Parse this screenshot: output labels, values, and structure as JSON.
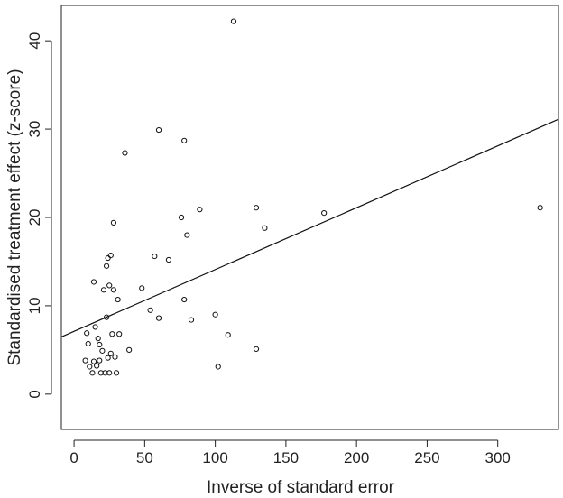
{
  "chart_data": {
    "type": "scatter",
    "title": "",
    "xlabel": "Inverse of standard error",
    "ylabel": "Standardised treatment effect (z-score)",
    "xlim": [
      -9,
      343
    ],
    "ylim": [
      -4,
      44
    ],
    "xticks": [
      0,
      50,
      100,
      150,
      200,
      250,
      300
    ],
    "yticks": [
      0,
      10,
      20,
      30,
      40
    ],
    "grid": false,
    "legend": "none",
    "series": [
      {
        "marker": "open-circle",
        "points": [
          [
            8,
            3.8
          ],
          [
            9,
            6.9
          ],
          [
            10,
            5.7
          ],
          [
            11,
            3.1
          ],
          [
            13,
            2.4
          ],
          [
            14,
            12.7
          ],
          [
            14,
            3.7
          ],
          [
            15,
            7.6
          ],
          [
            16,
            3.2
          ],
          [
            17,
            6.3
          ],
          [
            18,
            3.8
          ],
          [
            18,
            5.6
          ],
          [
            19,
            2.4
          ],
          [
            20,
            4.9
          ],
          [
            21,
            11.8
          ],
          [
            22,
            2.4
          ],
          [
            23,
            8.7
          ],
          [
            23,
            14.5
          ],
          [
            24,
            15.4
          ],
          [
            24,
            4.1
          ],
          [
            25,
            12.3
          ],
          [
            25,
            2.4
          ],
          [
            26,
            15.7
          ],
          [
            26,
            4.6
          ],
          [
            27,
            6.8
          ],
          [
            28,
            11.8
          ],
          [
            28,
            19.4
          ],
          [
            29,
            4.2
          ],
          [
            30,
            2.4
          ],
          [
            31,
            10.7
          ],
          [
            32,
            6.8
          ],
          [
            36,
            27.3
          ],
          [
            39,
            5.0
          ],
          [
            48,
            12.0
          ],
          [
            54,
            9.5
          ],
          [
            57,
            15.6
          ],
          [
            60,
            29.9
          ],
          [
            60,
            8.6
          ],
          [
            67,
            15.2
          ],
          [
            76,
            20.0
          ],
          [
            78,
            28.7
          ],
          [
            78,
            10.7
          ],
          [
            80,
            18.0
          ],
          [
            83,
            8.4
          ],
          [
            89,
            20.9
          ],
          [
            100,
            9.0
          ],
          [
            102,
            3.1
          ],
          [
            109,
            6.7
          ],
          [
            113,
            42.2
          ],
          [
            129,
            21.1
          ],
          [
            129,
            5.1
          ],
          [
            135,
            18.8
          ],
          [
            177,
            20.5
          ],
          [
            330,
            21.1
          ]
        ]
      }
    ],
    "regression_line": {
      "intercept": 7.1,
      "slope": 0.07
    }
  }
}
